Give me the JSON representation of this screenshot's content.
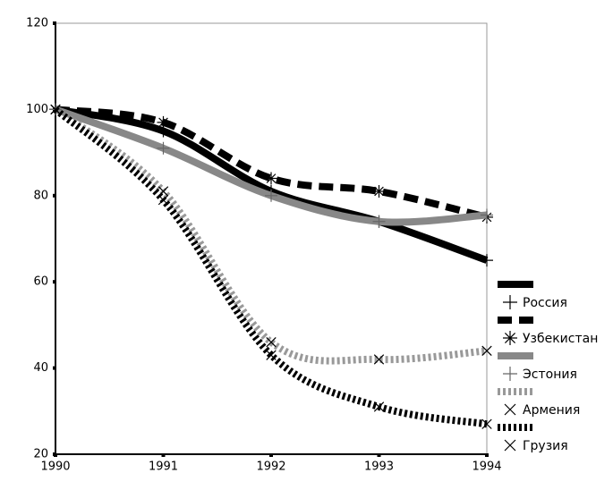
{
  "chart_data": {
    "type": "line",
    "x": [
      1990,
      1991,
      1992,
      1993,
      1994
    ],
    "xlim": [
      1990,
      1994
    ],
    "xticks": [
      1990,
      1991,
      1992,
      1993,
      1994
    ],
    "ylim": [
      20,
      120
    ],
    "yticks": [
      20,
      40,
      60,
      80,
      100,
      120
    ],
    "series": [
      {
        "name": "Россия",
        "color": "#000000",
        "line_style": "solid",
        "marker": "plus",
        "values": [
          100,
          95,
          81,
          74,
          65
        ]
      },
      {
        "name": "Узбекистан",
        "color": "#000000",
        "line_style": "dashed",
        "marker": "star",
        "values": [
          100,
          97,
          84,
          81,
          75
        ]
      },
      {
        "name": "Эстония",
        "color": "#888888",
        "line_style": "solid",
        "marker": "plus",
        "values": [
          100,
          91,
          80,
          74,
          75.5
        ]
      },
      {
        "name": "Армения",
        "color": "#999999",
        "line_style": "dotted",
        "marker": "x",
        "values": [
          100,
          81,
          46,
          42,
          44
        ]
      },
      {
        "name": "Грузия",
        "color": "#000000",
        "line_style": "dotted",
        "marker": "x",
        "values": [
          100,
          79,
          43,
          31,
          27
        ]
      }
    ]
  }
}
